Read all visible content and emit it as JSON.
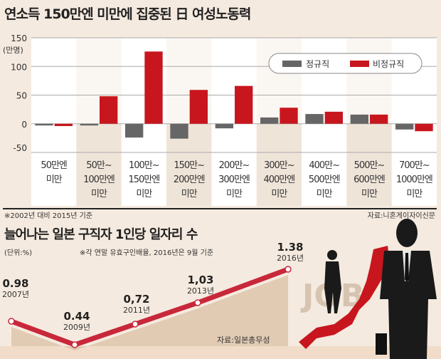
{
  "chart_data": [
    {
      "type": "bar",
      "title": "연소득 150만엔 미만에 집중된 日 여성노동력",
      "ylabel": "(만명)",
      "ylim": [
        -50,
        150
      ],
      "yticks": [
        "150",
        "100",
        "50",
        "0",
        "-50"
      ],
      "categories": [
        [
          "50만엔",
          "미만"
        ],
        [
          "50만~",
          "100만엔",
          "미만"
        ],
        [
          "100만~",
          "150만엔",
          "미만"
        ],
        [
          "150만~",
          "200만엔",
          "미만"
        ],
        [
          "200만~",
          "300만엔",
          "미만"
        ],
        [
          "300만~",
          "400만엔",
          "미만"
        ],
        [
          "400만~",
          "500만엔",
          "미만"
        ],
        [
          "500만~",
          "600만엔",
          "미만"
        ],
        [
          "700만~",
          "1000만엔",
          "미만"
        ]
      ],
      "series": [
        {
          "name": "정규직",
          "color": "#666666",
          "values": [
            -3,
            -3,
            -24,
            -26,
            -8,
            11,
            17,
            16,
            -10
          ]
        },
        {
          "name": "비정규직",
          "color": "#c8161e",
          "values": [
            -4,
            48,
            126,
            59,
            66,
            28,
            21,
            16,
            -13
          ]
        }
      ],
      "legend": "top-right",
      "footnote": "※2002년 대비 2015년 기준",
      "source": "자료:니혼게이자이신문"
    },
    {
      "type": "line",
      "title": "늘어나는 일본 구직자 1인당 일자리 수",
      "unit": "(단위:%)",
      "note": "※각 연말 유효구인배율, 2016년은 9월 기준",
      "points": [
        {
          "x": "2007년",
          "y": 0.98,
          "label": "0.98"
        },
        {
          "x": "2009년",
          "y": 0.44,
          "label": "0.44"
        },
        {
          "x": "2011년",
          "y": 0.72,
          "label": "0,72"
        },
        {
          "x": "2013년",
          "y": 1.03,
          "label": "1,03"
        },
        {
          "x": "2016년",
          "y": 1.38,
          "label": "1.38"
        }
      ],
      "years_numeric": [
        2007,
        2009,
        2011,
        2013,
        2016
      ],
      "source": "자료:일본총무성",
      "line_color": "#c8283a"
    }
  ],
  "illustration": {
    "watermark": "JOB"
  }
}
